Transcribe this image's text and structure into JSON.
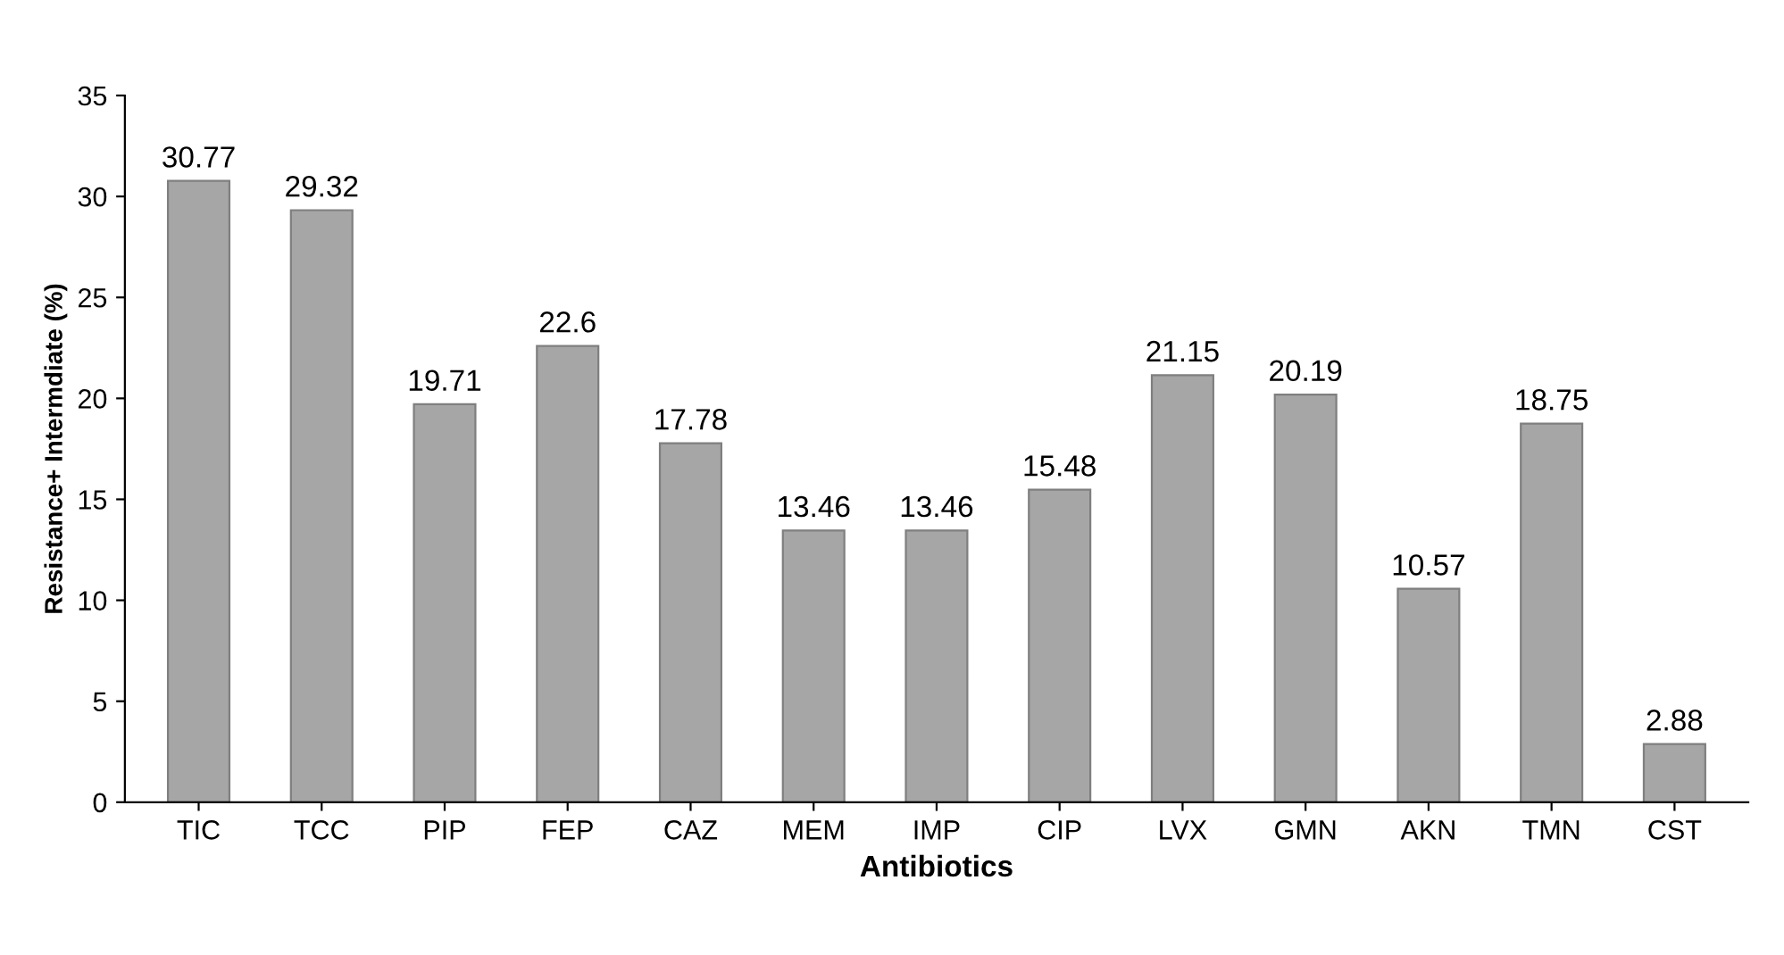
{
  "chart_data": {
    "type": "bar",
    "xlabel": "Antibiotics",
    "ylabel": "Resistance+ Intermdiate (%)",
    "categories": [
      "TIC",
      "TCC",
      "PIP",
      "FEP",
      "CAZ",
      "MEM",
      "IMP",
      "CIP",
      "LVX",
      "GMN",
      "AKN",
      "TMN",
      "CST"
    ],
    "values": [
      30.77,
      29.32,
      19.71,
      22.6,
      17.78,
      13.46,
      13.46,
      15.48,
      21.15,
      20.19,
      10.57,
      18.75,
      2.88
    ],
    "color": "#a6a6a6",
    "ylim": [
      0,
      35
    ],
    "yticks": [
      0,
      5,
      10,
      15,
      20,
      25,
      30,
      35
    ],
    "data_labels": true,
    "grid": false,
    "legend": false
  }
}
